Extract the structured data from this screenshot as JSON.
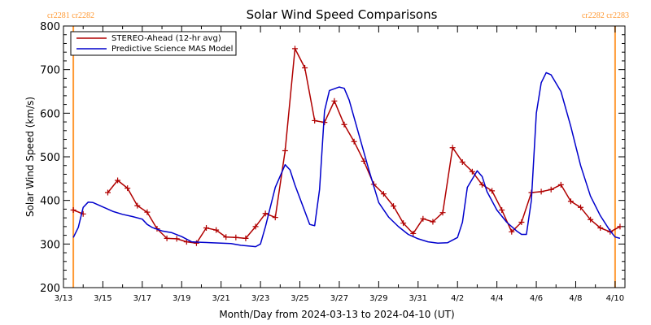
{
  "chart_data": {
    "type": "line",
    "title": "Solar Wind Speed Comparisons",
    "xlabel": "Month/Day from 2024-03-13 to 2024-04-10 (UT)",
    "ylabel": "Solar Wind Speed (km/s)",
    "ylim": [
      200,
      800
    ],
    "xlim": [
      "2024-03-13",
      "2024-04-10T12:00"
    ],
    "x_tick_labels": [
      "3/13",
      "3/15",
      "3/17",
      "3/19",
      "3/21",
      "3/23",
      "3/25",
      "3/27",
      "3/29",
      "3/31",
      "4/2",
      "4/4",
      "4/6",
      "4/8",
      "4/10"
    ],
    "y_tick_labels": [
      "200",
      "300",
      "400",
      "500",
      "600",
      "700",
      "800"
    ],
    "carrington_markers": [
      {
        "label": "cr2281 cr2282",
        "x": "2024-03-13T12:00",
        "position": "top-left"
      },
      {
        "label": "cr2282 cr2283",
        "x": "2024-04-10",
        "position": "top-right"
      }
    ],
    "legend_placement": "top-left",
    "series": [
      {
        "name": "STEREO-Ahead (12-hr avg)",
        "color": "#b00000",
        "marker": "plus",
        "segments": [
          [
            [
              "2024-03-13T12:00",
              378
            ],
            [
              "2024-03-14T00:00",
              369
            ]
          ],
          [
            [
              "2024-03-15T06:00",
              418
            ],
            [
              "2024-03-15T18:00",
              446
            ],
            [
              "2024-03-16T06:00",
              428
            ],
            [
              "2024-03-16T18:00",
              388
            ],
            [
              "2024-03-17T06:00",
              373
            ],
            [
              "2024-03-17T18:00",
              335
            ],
            [
              "2024-03-18T06:00",
              313
            ],
            [
              "2024-03-18T18:00",
              312
            ],
            [
              "2024-03-19T06:00",
              305
            ],
            [
              "2024-03-19T18:00",
              302
            ],
            [
              "2024-03-20T06:00",
              337
            ],
            [
              "2024-03-20T18:00",
              332
            ],
            [
              "2024-03-21T06:00",
              316
            ],
            [
              "2024-03-21T18:00",
              315
            ],
            [
              "2024-03-22T06:00",
              313
            ],
            [
              "2024-03-22T18:00",
              340
            ],
            [
              "2024-03-23T06:00",
              370
            ],
            [
              "2024-03-23T18:00",
              361
            ],
            [
              "2024-03-24T06:00",
              514
            ],
            [
              "2024-03-24T18:00",
              748
            ],
            [
              "2024-03-25T06:00",
              704
            ],
            [
              "2024-03-25T18:00",
              583
            ],
            [
              "2024-03-26T06:00",
              579
            ],
            [
              "2024-03-26T18:00",
              628
            ],
            [
              "2024-03-27T06:00",
              574
            ],
            [
              "2024-03-27T18:00",
              535
            ],
            [
              "2024-03-28T06:00",
              490
            ],
            [
              "2024-03-28T18:00",
              437
            ],
            [
              "2024-03-29T06:00",
              415
            ],
            [
              "2024-03-29T18:00",
              387
            ],
            [
              "2024-03-30T06:00",
              348
            ],
            [
              "2024-03-30T18:00",
              324
            ],
            [
              "2024-03-31T06:00",
              358
            ],
            [
              "2024-03-31T18:00",
              351
            ],
            [
              "2024-04-01T06:00",
              372
            ],
            [
              "2024-04-01T18:00",
              521
            ],
            [
              "2024-04-02T06:00",
              488
            ],
            [
              "2024-04-02T18:00",
              466
            ],
            [
              "2024-04-03T06:00",
              436
            ],
            [
              "2024-04-03T18:00",
              422
            ],
            [
              "2024-04-04T06:00",
              378
            ],
            [
              "2024-04-04T18:00",
              328
            ],
            [
              "2024-04-05T06:00",
              350
            ],
            [
              "2024-04-05T18:00",
              418
            ],
            [
              "2024-04-06T06:00",
              420
            ],
            [
              "2024-04-06T18:00",
              425
            ],
            [
              "2024-04-07T06:00",
              436
            ],
            [
              "2024-04-07T18:00",
              398
            ],
            [
              "2024-04-08T06:00",
              384
            ],
            [
              "2024-04-08T18:00",
              356
            ],
            [
              "2024-04-09T06:00",
              337
            ],
            [
              "2024-04-09T18:00",
              328
            ],
            [
              "2024-04-10T06:00",
              340
            ]
          ]
        ]
      },
      {
        "name": "Predictive Science MAS Model",
        "color": "#0000cc",
        "marker": "none",
        "segments": [
          [
            [
              "2024-03-13T12:00",
              315
            ],
            [
              "2024-03-13T18:00",
              338
            ],
            [
              "2024-03-14T00:00",
              384
            ],
            [
              "2024-03-14T06:00",
              396
            ],
            [
              "2024-03-14T12:00",
              395
            ],
            [
              "2024-03-15T00:00",
              385
            ],
            [
              "2024-03-15T12:00",
              375
            ],
            [
              "2024-03-16T00:00",
              368
            ],
            [
              "2024-03-16T12:00",
              363
            ],
            [
              "2024-03-17T00:00",
              357
            ],
            [
              "2024-03-17T06:00",
              345
            ],
            [
              "2024-03-17T12:00",
              338
            ],
            [
              "2024-03-18T00:00",
              330
            ],
            [
              "2024-03-18T12:00",
              326
            ],
            [
              "2024-03-19T00:00",
              317
            ],
            [
              "2024-03-19T12:00",
              305
            ],
            [
              "2024-03-20T00:00",
              304
            ],
            [
              "2024-03-20T12:00",
              303
            ],
            [
              "2024-03-21T00:00",
              302
            ],
            [
              "2024-03-21T12:00",
              301
            ],
            [
              "2024-03-22T00:00",
              297
            ],
            [
              "2024-03-22T12:00",
              295
            ],
            [
              "2024-03-22T18:00",
              294
            ],
            [
              "2024-03-23T00:00",
              300
            ],
            [
              "2024-03-23T06:00",
              340
            ],
            [
              "2024-03-23T18:00",
              430
            ],
            [
              "2024-03-24T06:00",
              482
            ],
            [
              "2024-03-24T12:00",
              470
            ],
            [
              "2024-03-24T18:00",
              435
            ],
            [
              "2024-03-25T06:00",
              375
            ],
            [
              "2024-03-25T12:00",
              345
            ],
            [
              "2024-03-25T18:00",
              342
            ],
            [
              "2024-03-26T00:00",
              425
            ],
            [
              "2024-03-26T06:00",
              605
            ],
            [
              "2024-03-26T12:00",
              652
            ],
            [
              "2024-03-27T00:00",
              660
            ],
            [
              "2024-03-27T06:00",
              657
            ],
            [
              "2024-03-27T12:00",
              630
            ],
            [
              "2024-03-28T00:00",
              550
            ],
            [
              "2024-03-28T12:00",
              470
            ],
            [
              "2024-03-29T00:00",
              395
            ],
            [
              "2024-03-29T12:00",
              362
            ],
            [
              "2024-03-30T00:00",
              340
            ],
            [
              "2024-03-30T12:00",
              322
            ],
            [
              "2024-03-31T00:00",
              312
            ],
            [
              "2024-03-31T12:00",
              305
            ],
            [
              "2024-04-01T00:00",
              302
            ],
            [
              "2024-04-01T12:00",
              303
            ],
            [
              "2024-04-02T00:00",
              315
            ],
            [
              "2024-04-02T06:00",
              350
            ],
            [
              "2024-04-02T12:00",
              430
            ],
            [
              "2024-04-03T00:00",
              468
            ],
            [
              "2024-04-03T06:00",
              455
            ],
            [
              "2024-04-03T12:00",
              420
            ],
            [
              "2024-04-04T00:00",
              378
            ],
            [
              "2024-04-04T12:00",
              350
            ],
            [
              "2024-04-05T00:00",
              330
            ],
            [
              "2024-04-05T06:00",
              322
            ],
            [
              "2024-04-05T12:00",
              322
            ],
            [
              "2024-04-05T18:00",
              400
            ],
            [
              "2024-04-06T00:00",
              600
            ],
            [
              "2024-04-06T06:00",
              670
            ],
            [
              "2024-04-06T12:00",
              693
            ],
            [
              "2024-04-06T18:00",
              688
            ],
            [
              "2024-04-07T06:00",
              650
            ],
            [
              "2024-04-07T18:00",
              570
            ],
            [
              "2024-04-08T06:00",
              480
            ],
            [
              "2024-04-08T18:00",
              410
            ],
            [
              "2024-04-09T06:00",
              365
            ],
            [
              "2024-04-09T18:00",
              330
            ],
            [
              "2024-04-10T00:00",
              316
            ],
            [
              "2024-04-10T06:00",
              313
            ]
          ]
        ]
      }
    ]
  }
}
